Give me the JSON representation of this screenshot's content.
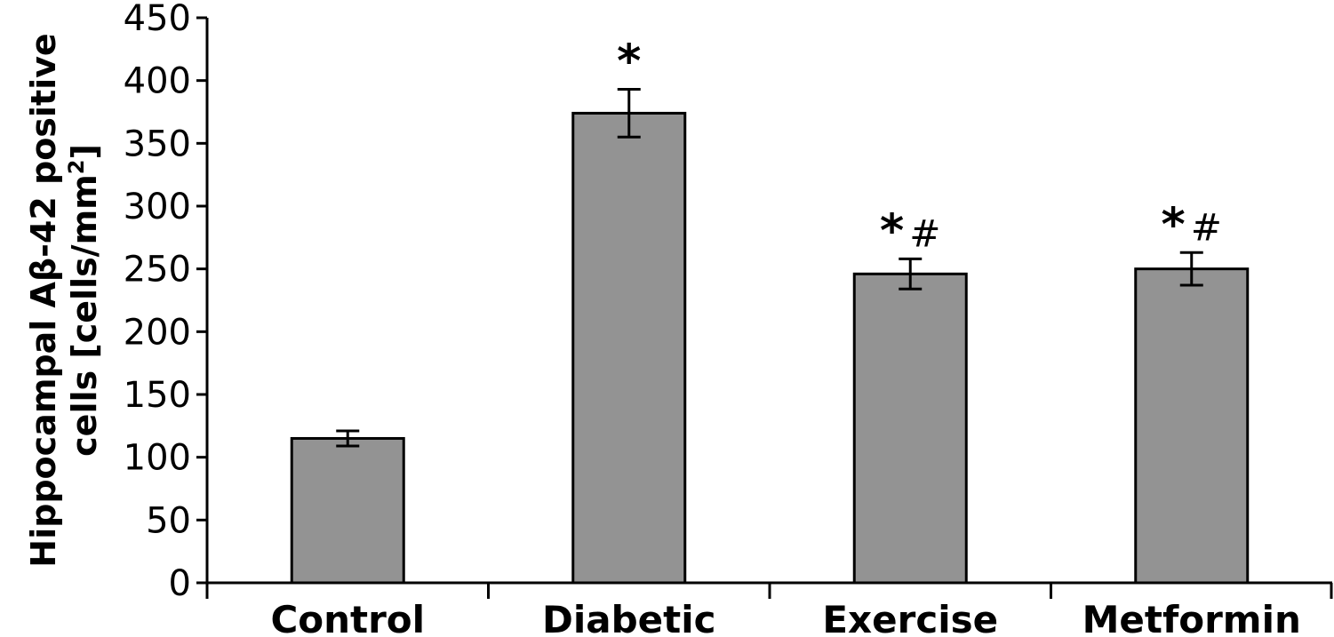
{
  "chart_data": {
    "type": "bar",
    "title": "",
    "xlabel": "",
    "ylabel_line1": "Hippocampal Aβ-42 positive",
    "ylabel_line2_main": "cells [cells/mm",
    "ylabel_line2_sup": "2",
    "ylabel_line2_end": "]",
    "categories": [
      "Control",
      "Diabetic",
      "Exercise",
      "Metformin"
    ],
    "values": [
      115,
      374,
      246,
      250
    ],
    "errors": [
      6,
      19,
      12,
      13
    ],
    "annotations": [
      {
        "star": "",
        "hash": ""
      },
      {
        "star": "*",
        "hash": ""
      },
      {
        "star": "*",
        "hash": "#"
      },
      {
        "star": "*",
        "hash": "#"
      }
    ],
    "ylim": [
      0,
      450
    ],
    "yticks": [
      0,
      50,
      100,
      150,
      200,
      250,
      300,
      350,
      400,
      450
    ],
    "bar_color": "#939393",
    "grid": false,
    "legend": "none"
  }
}
